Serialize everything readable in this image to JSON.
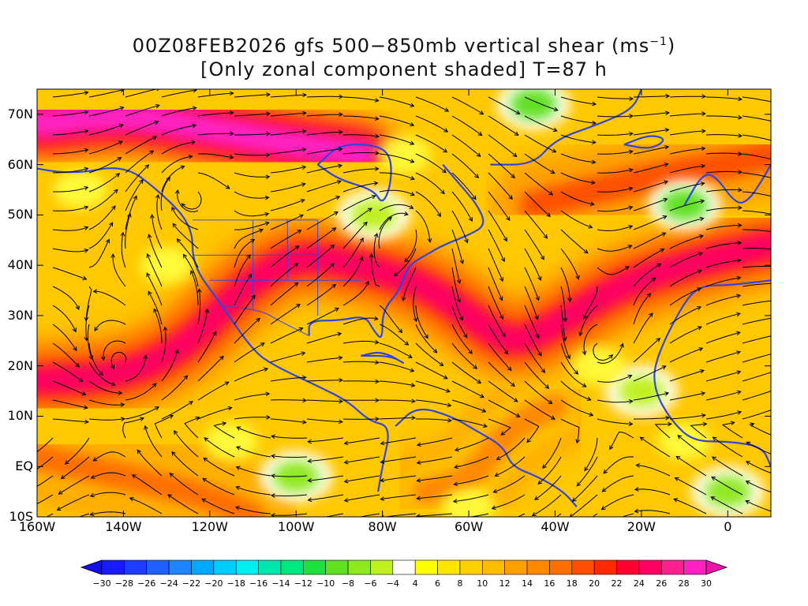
{
  "title": {
    "line1_prefix": "00Z08FEB2026 gfs 500−850mb vertical shear (ms",
    "line1_sup": "−1",
    "line1_suffix": ")",
    "line2": "[Only zonal component shaded] T=87 h"
  },
  "map": {
    "projection": "lat-lon",
    "lon_range": [
      -160,
      10
    ],
    "lat_range": [
      -10,
      75
    ],
    "lat_ticks": [
      {
        "value": 70,
        "label": "70N"
      },
      {
        "value": 60,
        "label": "60N"
      },
      {
        "value": 50,
        "label": "50N"
      },
      {
        "value": 40,
        "label": "40N"
      },
      {
        "value": 30,
        "label": "30N"
      },
      {
        "value": 20,
        "label": "20N"
      },
      {
        "value": 10,
        "label": "10N"
      },
      {
        "value": 0,
        "label": "EQ"
      },
      {
        "value": -10,
        "label": "10S"
      }
    ],
    "lon_ticks": [
      {
        "value": -160,
        "label": "160W"
      },
      {
        "value": -140,
        "label": "140W"
      },
      {
        "value": -120,
        "label": "120W"
      },
      {
        "value": -100,
        "label": "100W"
      },
      {
        "value": -80,
        "label": "80W"
      },
      {
        "value": -60,
        "label": "60W"
      },
      {
        "value": -40,
        "label": "40W"
      },
      {
        "value": -20,
        "label": "20W"
      },
      {
        "value": 0,
        "label": "0"
      }
    ],
    "coastline_color": "#3344dd",
    "streamline_color": "#000000",
    "shading_field": "zonal vertical shear",
    "jet_bands": [
      {
        "name": "north-pacific-jet",
        "points": [
          [
            -160,
            68
          ],
          [
            -140,
            70
          ],
          [
            -120,
            67
          ],
          [
            -100,
            64
          ],
          [
            -85,
            62
          ]
        ],
        "strength": 28
      },
      {
        "name": "subtropical-jet",
        "points": [
          [
            -160,
            17
          ],
          [
            -140,
            18
          ],
          [
            -125,
            24
          ],
          [
            -112,
            36
          ],
          [
            -100,
            42
          ],
          [
            -85,
            40
          ],
          [
            -70,
            36
          ],
          [
            -60,
            30
          ],
          [
            -50,
            24
          ],
          [
            -40,
            28
          ],
          [
            -25,
            36
          ],
          [
            -10,
            40
          ],
          [
            10,
            44
          ]
        ],
        "strength": 24
      },
      {
        "name": "atlantic-jet",
        "points": [
          [
            -45,
            52
          ],
          [
            -30,
            55
          ],
          [
            -15,
            58
          ],
          [
            0,
            60
          ],
          [
            10,
            62
          ]
        ],
        "strength": 18
      },
      {
        "name": "tropical-band",
        "points": [
          [
            -160,
            2
          ],
          [
            -140,
            -2
          ],
          [
            -120,
            -6
          ],
          [
            -110,
            -10
          ]
        ],
        "strength": 16
      },
      {
        "name": "south-atlantic-band",
        "points": [
          [
            -70,
            -5
          ],
          [
            -60,
            -3
          ],
          [
            -50,
            8
          ],
          [
            -40,
            12
          ]
        ],
        "strength": 14
      }
    ],
    "easterly_patches": [
      {
        "name": "east-pacific-easterly",
        "center": [
          -100,
          -2
        ],
        "strength": -8
      },
      {
        "name": "hudson-easterly",
        "center": [
          -82,
          50
        ],
        "strength": -6
      },
      {
        "name": "greenland-easterly",
        "center": [
          -45,
          72
        ],
        "strength": -10
      },
      {
        "name": "west-africa-easterly",
        "center": [
          -20,
          15
        ],
        "strength": -6
      },
      {
        "name": "gulf-guinea-easterly",
        "center": [
          0,
          -5
        ],
        "strength": -8
      },
      {
        "name": "north-sea-easterly",
        "center": [
          -10,
          52
        ],
        "strength": -10
      }
    ]
  },
  "colorbar": {
    "levels": [
      -30,
      -28,
      -26,
      -24,
      -22,
      -20,
      -18,
      -16,
      -14,
      -12,
      -10,
      -8,
      -6,
      -4,
      4,
      6,
      8,
      10,
      12,
      14,
      16,
      18,
      20,
      22,
      24,
      26,
      28,
      30
    ],
    "labels": [
      "−30",
      "−28",
      "−26",
      "−24",
      "−22",
      "−20",
      "−18",
      "−16",
      "−14",
      "−12",
      "−10",
      "−8",
      "−6",
      "−4",
      "4",
      "6",
      "8",
      "10",
      "12",
      "14",
      "16",
      "18",
      "20",
      "22",
      "24",
      "26",
      "28",
      "30"
    ],
    "colors": [
      "#1a1aff",
      "#1e3cff",
      "#2060ff",
      "#1e84ff",
      "#00a8ff",
      "#00ccff",
      "#00eeee",
      "#00e6b0",
      "#00e680",
      "#20e040",
      "#60e020",
      "#90e820",
      "#c0f020",
      "#ffffff",
      "#ffff00",
      "#ffe600",
      "#ffd000",
      "#ffbc00",
      "#ffa000",
      "#ff8800",
      "#ff7000",
      "#ff5000",
      "#ff2a00",
      "#ff0030",
      "#ff0060",
      "#ff2090",
      "#ff20c0"
    ]
  }
}
